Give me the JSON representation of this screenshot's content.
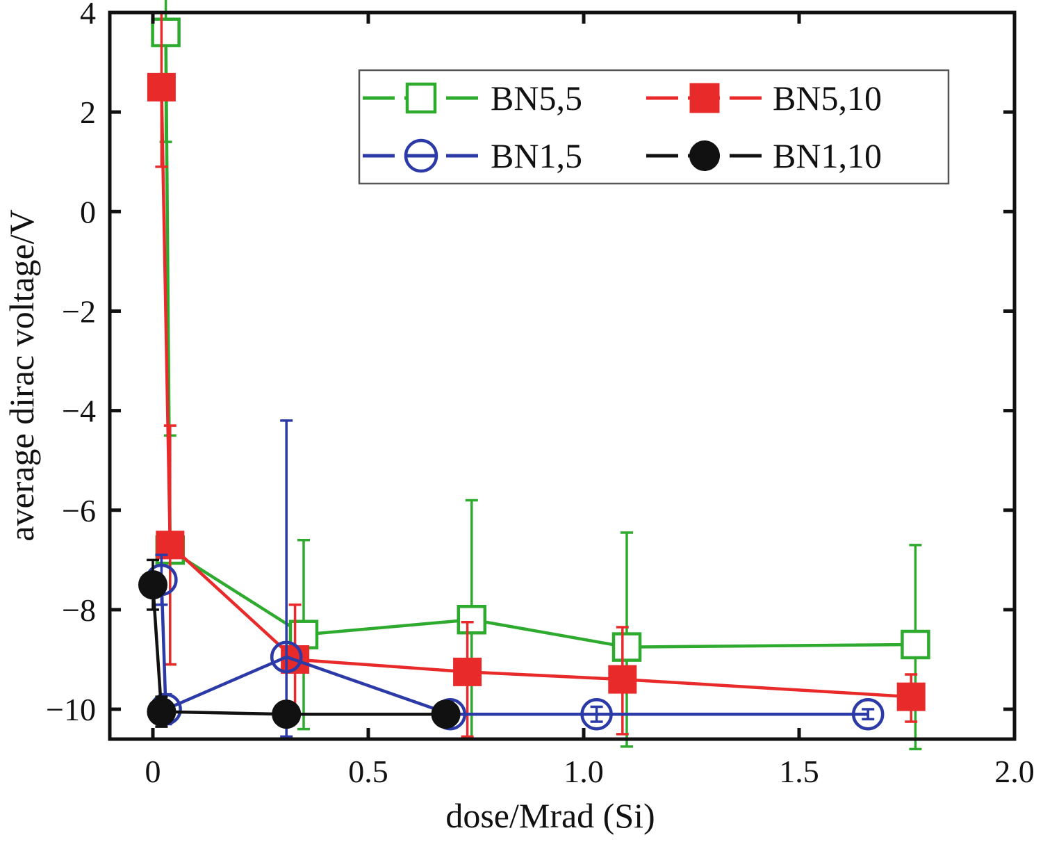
{
  "chart_data": {
    "type": "line",
    "xlabel": "dose/Mrad (Si)",
    "ylabel": "average dirac voltage/V",
    "xlim": [
      -0.1,
      2.0
    ],
    "ylim": [
      -10.6,
      4.0
    ],
    "xticks": [
      0,
      0.5,
      1.0,
      1.5,
      2.0
    ],
    "xtick_labels": [
      "0",
      "0.5",
      "1.0",
      "1.5",
      "2.0"
    ],
    "yticks": [
      4,
      2,
      0,
      -2,
      -4,
      -6,
      -8,
      -10
    ],
    "ytick_labels": [
      "4",
      "2",
      "0",
      "−2",
      "−4",
      "−6",
      "−8",
      "−10"
    ],
    "grid": false,
    "legend_position": "top-right",
    "series": [
      {
        "name": "BN5,5",
        "color": "#2eaa2e",
        "marker": "open-square",
        "x": [
          0.03,
          0.04,
          0.35,
          0.74,
          1.1,
          1.77
        ],
        "y": [
          3.6,
          -6.8,
          -8.5,
          -8.2,
          -8.75,
          -8.7
        ],
        "err_low": [
          2.2,
          2.3,
          1.9,
          2.4,
          2.0,
          2.1
        ],
        "err_high": [
          1.0,
          2.3,
          1.9,
          2.4,
          2.3,
          2.0
        ]
      },
      {
        "name": "BN5,10",
        "color": "#e82a2a",
        "marker": "filled-square",
        "x": [
          0.02,
          0.04,
          0.33,
          0.73,
          1.09,
          1.76
        ],
        "y": [
          2.5,
          -6.7,
          -9.0,
          -9.25,
          -9.4,
          -9.75
        ],
        "err_low": [
          1.6,
          2.4,
          1.1,
          1.3,
          1.1,
          0.5
        ],
        "err_high": [
          1.5,
          2.4,
          1.1,
          1.0,
          1.05,
          0.45
        ]
      },
      {
        "name": "BN1,5",
        "color": "#2b3aa6",
        "marker": "open-circle",
        "x": [
          0.02,
          0.03,
          0.31,
          0.69,
          1.03,
          1.66
        ],
        "y": [
          -7.4,
          -10.0,
          -8.95,
          -10.1,
          -10.1,
          -10.1
        ],
        "err_low": [
          0.5,
          0.3,
          1.6,
          0.15,
          0.15,
          0.1
        ],
        "err_high": [
          0.5,
          0.3,
          4.75,
          0.15,
          0.15,
          0.1
        ]
      },
      {
        "name": "BN1,10",
        "color": "#111111",
        "marker": "filled-circle",
        "x": [
          0.0,
          0.02,
          0.31,
          0.68
        ],
        "y": [
          -7.5,
          -10.05,
          -10.1,
          -10.1
        ],
        "err_low": [
          0.5,
          0.3,
          0.15,
          0.15
        ],
        "err_high": [
          0.5,
          0.3,
          0.15,
          0.15
        ]
      }
    ]
  }
}
